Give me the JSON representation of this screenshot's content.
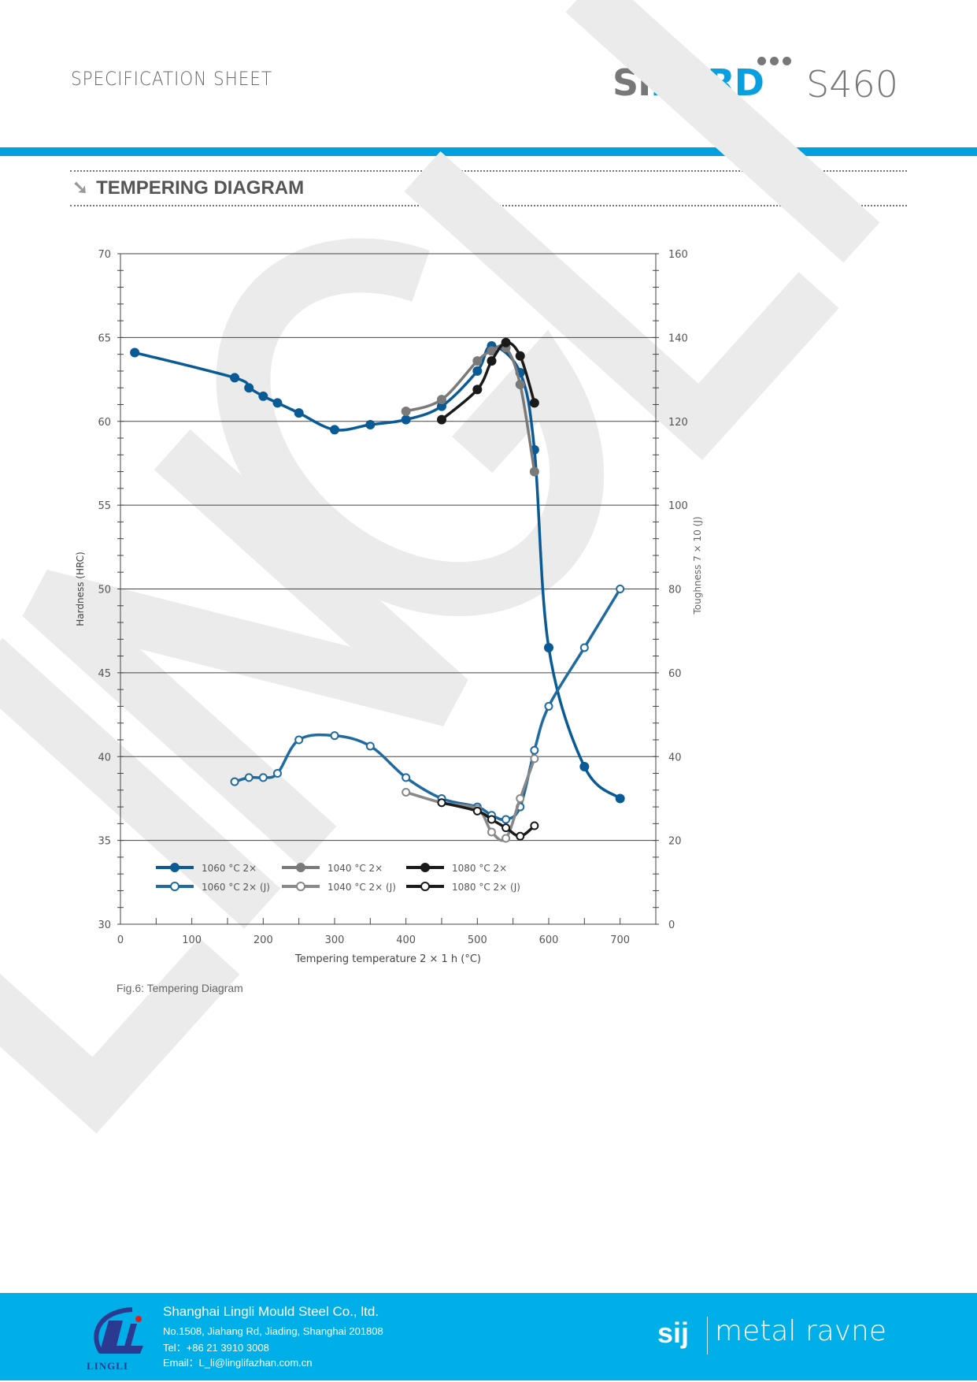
{
  "header": {
    "title": "SPECIFICATION SHEET",
    "logo_part1": "SI",
    "logo_part2": "HARD",
    "model": "S460",
    "accent": "#009fe0"
  },
  "section": {
    "icon": "arrow-down-right-icon",
    "title": "TEMPERING DIAGRAM"
  },
  "watermark": "LINGLI",
  "caption": "Fig.6: Tempering Diagram",
  "chart_data": {
    "type": "line",
    "xlabel": "Tempering temperature 2 × 1 h (°C)",
    "ylabel": "Hardness (HRC)",
    "y2label": "Toughness  7 × 10 (J)",
    "xlim": [
      0,
      750
    ],
    "ylim": [
      30,
      70
    ],
    "y2lim": [
      0,
      160
    ],
    "xticks": [
      0,
      100,
      200,
      300,
      400,
      500,
      600,
      700
    ],
    "yticks": [
      30,
      35,
      40,
      45,
      50,
      55,
      60,
      65,
      70
    ],
    "y2ticks": [
      0,
      20,
      40,
      60,
      80,
      100,
      120,
      140,
      160
    ],
    "grid": "horizontal",
    "legend": "bottom-left",
    "series": [
      {
        "name": "1060 °C 2×",
        "axis": "left",
        "color": "#0a5a96",
        "marker": "filled",
        "x": [
          20,
          160,
          180,
          200,
          220,
          250,
          300,
          350,
          400,
          450,
          500,
          520,
          560,
          580,
          600,
          650,
          700
        ],
        "y": [
          64.1,
          62.6,
          62.0,
          61.5,
          61.1,
          60.5,
          59.5,
          59.8,
          60.1,
          60.9,
          63.0,
          64.5,
          62.9,
          58.3,
          46.5,
          39.4,
          37.5
        ]
      },
      {
        "name": "1040 °C 2×",
        "axis": "left",
        "color": "#7a7a7a",
        "marker": "filled",
        "x": [
          400,
          450,
          500,
          520,
          540,
          560,
          580
        ],
        "y": [
          60.6,
          61.3,
          63.6,
          64.2,
          64.4,
          62.2,
          57.0
        ]
      },
      {
        "name": "1080 °C 2×",
        "axis": "left",
        "color": "#1a1a1a",
        "marker": "filled",
        "x": [
          450,
          500,
          520,
          540,
          560,
          580
        ],
        "y": [
          60.1,
          61.9,
          63.6,
          64.7,
          63.9,
          61.1
        ]
      },
      {
        "name": "1060 °C 2× (J)",
        "axis": "right",
        "color": "#1f6aa0",
        "marker": "open",
        "x": [
          160,
          180,
          200,
          220,
          250,
          300,
          350,
          400,
          450,
          500,
          520,
          540,
          560,
          580,
          600,
          650,
          700
        ],
        "y": [
          34,
          35,
          35,
          36,
          44,
          45,
          42.5,
          35,
          30,
          28,
          26,
          25,
          28,
          41.5,
          52,
          66,
          80
        ]
      },
      {
        "name": "1040 °C 2× (J)",
        "axis": "right",
        "color": "#888888",
        "marker": "open",
        "x": [
          400,
          450,
          500,
          520,
          540,
          560,
          580
        ],
        "y": [
          31.5,
          29,
          27.5,
          22,
          20.5,
          30,
          39.5
        ]
      },
      {
        "name": "1080 °C 2× (J)",
        "axis": "right",
        "color": "#1a1a1a",
        "marker": "open",
        "x": [
          450,
          500,
          520,
          540,
          560,
          580
        ],
        "y": [
          29,
          27,
          25,
          23,
          21,
          23.5
        ]
      }
    ]
  },
  "footer": {
    "logo_text": "LINGLI",
    "company": "Shanghai Lingli Mould Steel Co., ltd.",
    "address": "No.1508, Jiahang Rd, Jiading, Shanghai 201808",
    "tel": "Tel：+86 21 3910 3008",
    "email": "Email：L_li@linglifazhan.com.cn",
    "partner1": "sij",
    "partner2": "metal ravne",
    "color": "#00aee8"
  }
}
